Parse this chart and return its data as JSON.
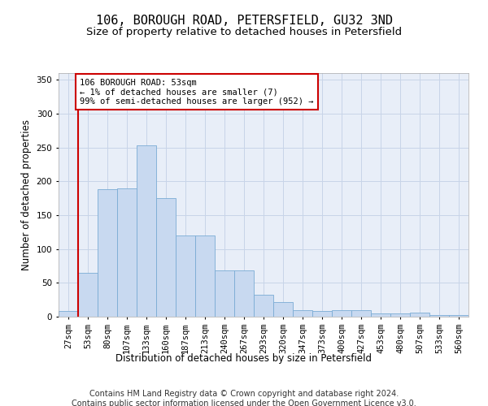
{
  "title": "106, BOROUGH ROAD, PETERSFIELD, GU32 3ND",
  "subtitle": "Size of property relative to detached houses in Petersfield",
  "xlabel": "Distribution of detached houses by size in Petersfield",
  "ylabel": "Number of detached properties",
  "footer_line1": "Contains HM Land Registry data © Crown copyright and database right 2024.",
  "footer_line2": "Contains public sector information licensed under the Open Government Licence v3.0.",
  "bar_labels": [
    "27sqm",
    "53sqm",
    "80sqm",
    "107sqm",
    "133sqm",
    "160sqm",
    "187sqm",
    "213sqm",
    "240sqm",
    "267sqm",
    "293sqm",
    "320sqm",
    "347sqm",
    "373sqm",
    "400sqm",
    "427sqm",
    "453sqm",
    "480sqm",
    "507sqm",
    "533sqm",
    "560sqm"
  ],
  "bar_values": [
    8,
    65,
    188,
    190,
    253,
    175,
    120,
    120,
    68,
    68,
    32,
    22,
    10,
    8,
    10,
    10,
    5,
    5,
    6,
    3,
    2
  ],
  "bar_color": "#c8d9f0",
  "bar_edgecolor": "#7aabd4",
  "annotation_text": "106 BOROUGH ROAD: 53sqm\n← 1% of detached houses are smaller (7)\n99% of semi-detached houses are larger (952) →",
  "annotation_box_color": "#ffffff",
  "annotation_box_edgecolor": "#cc0000",
  "vline_color": "#cc0000",
  "vline_x_index": 1,
  "ylim": [
    0,
    360
  ],
  "yticks": [
    0,
    50,
    100,
    150,
    200,
    250,
    300,
    350
  ],
  "background_color": "#ffffff",
  "plot_bg_color": "#e8eef8",
  "grid_color": "#c8d4e8",
  "title_fontsize": 11,
  "subtitle_fontsize": 9.5,
  "axis_label_fontsize": 8.5,
  "tick_fontsize": 7.5,
  "annotation_fontsize": 7.5,
  "footer_fontsize": 7
}
